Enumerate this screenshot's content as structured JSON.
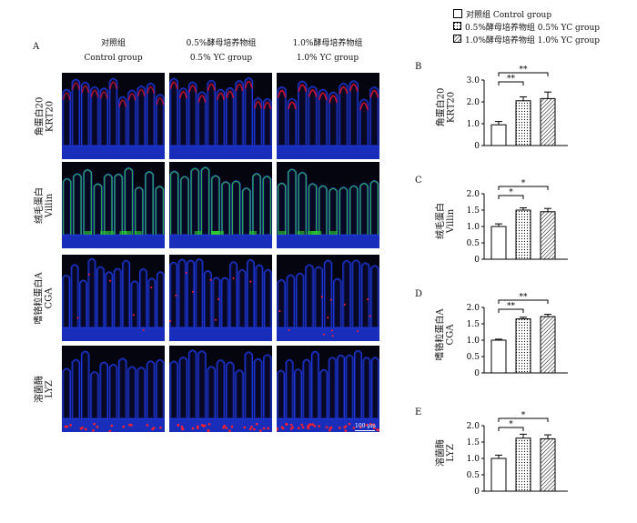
{
  "panel_a": {
    "letter": "A",
    "columns": [
      {
        "zh": "对照组",
        "en": "Control group"
      },
      {
        "zh": "0.5%酵母培养物组",
        "en": "0.5% YC group"
      },
      {
        "zh": "1.0%酵母培养物组",
        "en": "1.0% YC group"
      }
    ],
    "rows": [
      {
        "zh": "角蛋白20",
        "en": "KRT20",
        "accent": "#e8102a"
      },
      {
        "zh": "绒毛蛋白",
        "en": "Villin",
        "accent": "#2fd62a"
      },
      {
        "zh": "嗜铬粒蛋白A",
        "en": "CGA",
        "accent": "#ff2030"
      },
      {
        "zh": "溶菌酶",
        "en": "LYZ",
        "accent": "#ff1e2e"
      }
    ],
    "scale_bar": "100 μm"
  },
  "legend": {
    "items": [
      {
        "label": "对照组  Control group",
        "pattern": "plain"
      },
      {
        "label": "0.5%酵母培养物组  0.5% YC group",
        "pattern": "dots"
      },
      {
        "label": "1.0%酵母培养物组  1.0% YC group",
        "pattern": "hatch"
      }
    ]
  },
  "colors": {
    "dapi": "#1c36d8",
    "background": "#050510"
  },
  "chart_data": [
    {
      "type": "bar",
      "letter": "B",
      "ylabel_zh": "角蛋白20",
      "ylabel_en": "KRT20",
      "categories": [
        "Control group",
        "0.5% YC group",
        "1.0% YC group"
      ],
      "values": [
        0.95,
        2.05,
        2.15
      ],
      "errors": [
        0.15,
        0.18,
        0.3
      ],
      "ylim": [
        0,
        3.0
      ],
      "yticks": [
        "0",
        "1.0",
        "2.0",
        "3.0"
      ],
      "sig": [
        {
          "from": 0,
          "to": 1,
          "label": "**"
        },
        {
          "from": 0,
          "to": 2,
          "label": "**"
        }
      ]
    },
    {
      "type": "bar",
      "letter": "C",
      "ylabel_zh": "绒毛蛋白",
      "ylabel_en": "Villin",
      "categories": [
        "Control group",
        "0.5% YC group",
        "1.0% YC group"
      ],
      "values": [
        1.0,
        1.5,
        1.45
      ],
      "errors": [
        0.08,
        0.07,
        0.1
      ],
      "ylim": [
        0,
        2.0
      ],
      "yticks": [
        "0",
        "0.5",
        "1.0",
        "1.5",
        "2.0"
      ],
      "sig": [
        {
          "from": 0,
          "to": 1,
          "label": "*"
        },
        {
          "from": 0,
          "to": 2,
          "label": "*"
        }
      ]
    },
    {
      "type": "bar",
      "letter": "D",
      "ylabel_zh": "嗜铬粒蛋白A",
      "ylabel_en": "CGA",
      "categories": [
        "Control group",
        "0.5% YC group",
        "1.0% YC group"
      ],
      "values": [
        1.0,
        1.65,
        1.72
      ],
      "errors": [
        0.03,
        0.05,
        0.07
      ],
      "ylim": [
        0,
        2.0
      ],
      "yticks": [
        "0",
        "0.5",
        "1.0",
        "1.5",
        "2.0"
      ],
      "sig": [
        {
          "from": 0,
          "to": 1,
          "label": "**"
        },
        {
          "from": 0,
          "to": 2,
          "label": "**"
        }
      ]
    },
    {
      "type": "bar",
      "letter": "E",
      "ylabel_zh": "溶菌酶",
      "ylabel_en": "LYZ",
      "categories": [
        "Control group",
        "0.5% YC group",
        "1.0% YC group"
      ],
      "values": [
        1.0,
        1.62,
        1.6
      ],
      "errors": [
        0.1,
        0.12,
        0.12
      ],
      "ylim": [
        0,
        2.0
      ],
      "yticks": [
        "0",
        "0.5",
        "1.0",
        "1.5",
        "2.0"
      ],
      "sig": [
        {
          "from": 0,
          "to": 1,
          "label": "*"
        },
        {
          "from": 0,
          "to": 2,
          "label": "*"
        }
      ]
    }
  ]
}
